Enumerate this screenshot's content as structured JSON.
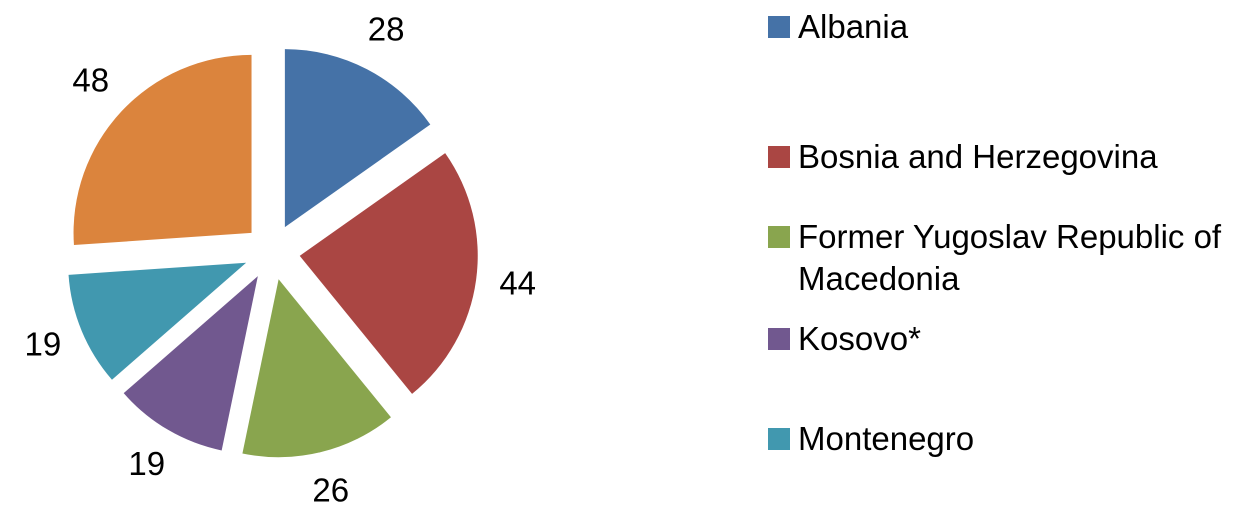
{
  "chart_data": {
    "type": "pie",
    "categories": [
      "Albania",
      "Bosnia and Herzegovina",
      "Former Yugoslav Republic of Macedonia",
      "Kosovo*",
      "Montenegro",
      null
    ],
    "values": [
      28,
      44,
      26,
      19,
      19,
      48
    ],
    "colors": [
      "#4572a7",
      "#aa4643",
      "#89a54e",
      "#71588f",
      "#4198af",
      "#db843d"
    ],
    "exploded": true,
    "legend": "right"
  }
}
